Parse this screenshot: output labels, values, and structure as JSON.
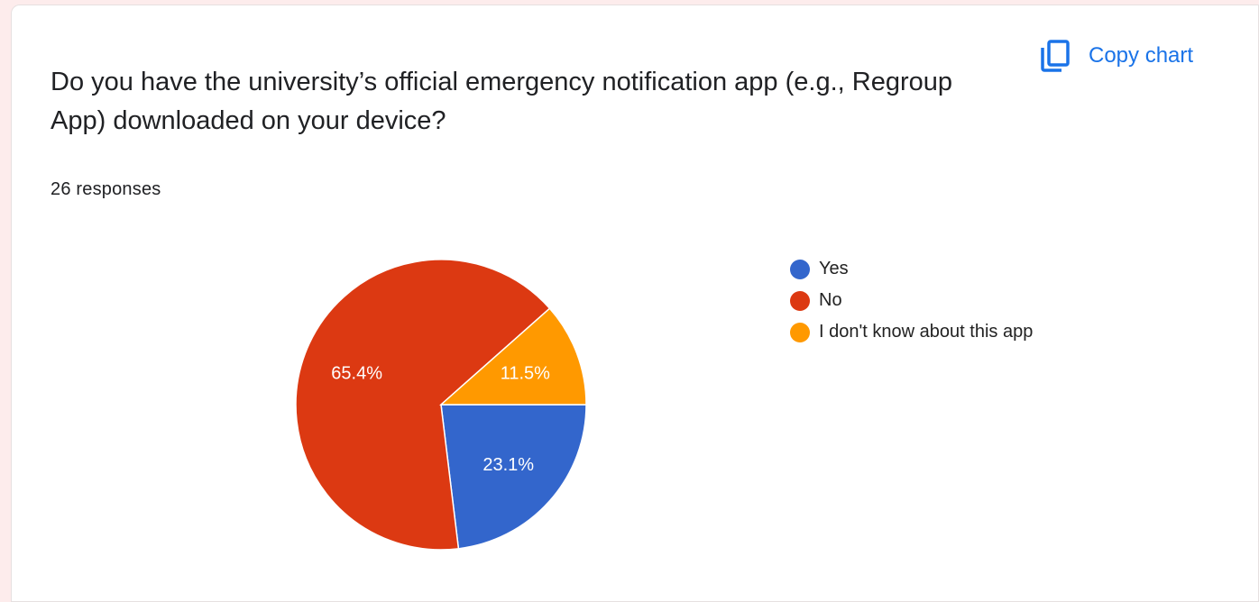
{
  "question": "Do you have the university’s official emergency notification app (e.g., Regroup App) downloaded on your device?",
  "responses_text": "26 responses",
  "copy_chart_label": "Copy chart",
  "copy_icon": "copy-icon",
  "chart_data": {
    "type": "pie",
    "title": "Do you have the university’s official emergency notification app (e.g., Regroup App) downloaded on your device?",
    "total_responses": 26,
    "slices": [
      {
        "label": "Yes",
        "value": 6,
        "percent_label": "23.1%",
        "color": "#3366cc"
      },
      {
        "label": "No",
        "value": 17,
        "percent_label": "65.4%",
        "color": "#dc3912"
      },
      {
        "label": "I don't know about this app",
        "value": 3,
        "percent_label": "11.5%",
        "color": "#ff9900"
      }
    ],
    "legend_position": "right"
  }
}
